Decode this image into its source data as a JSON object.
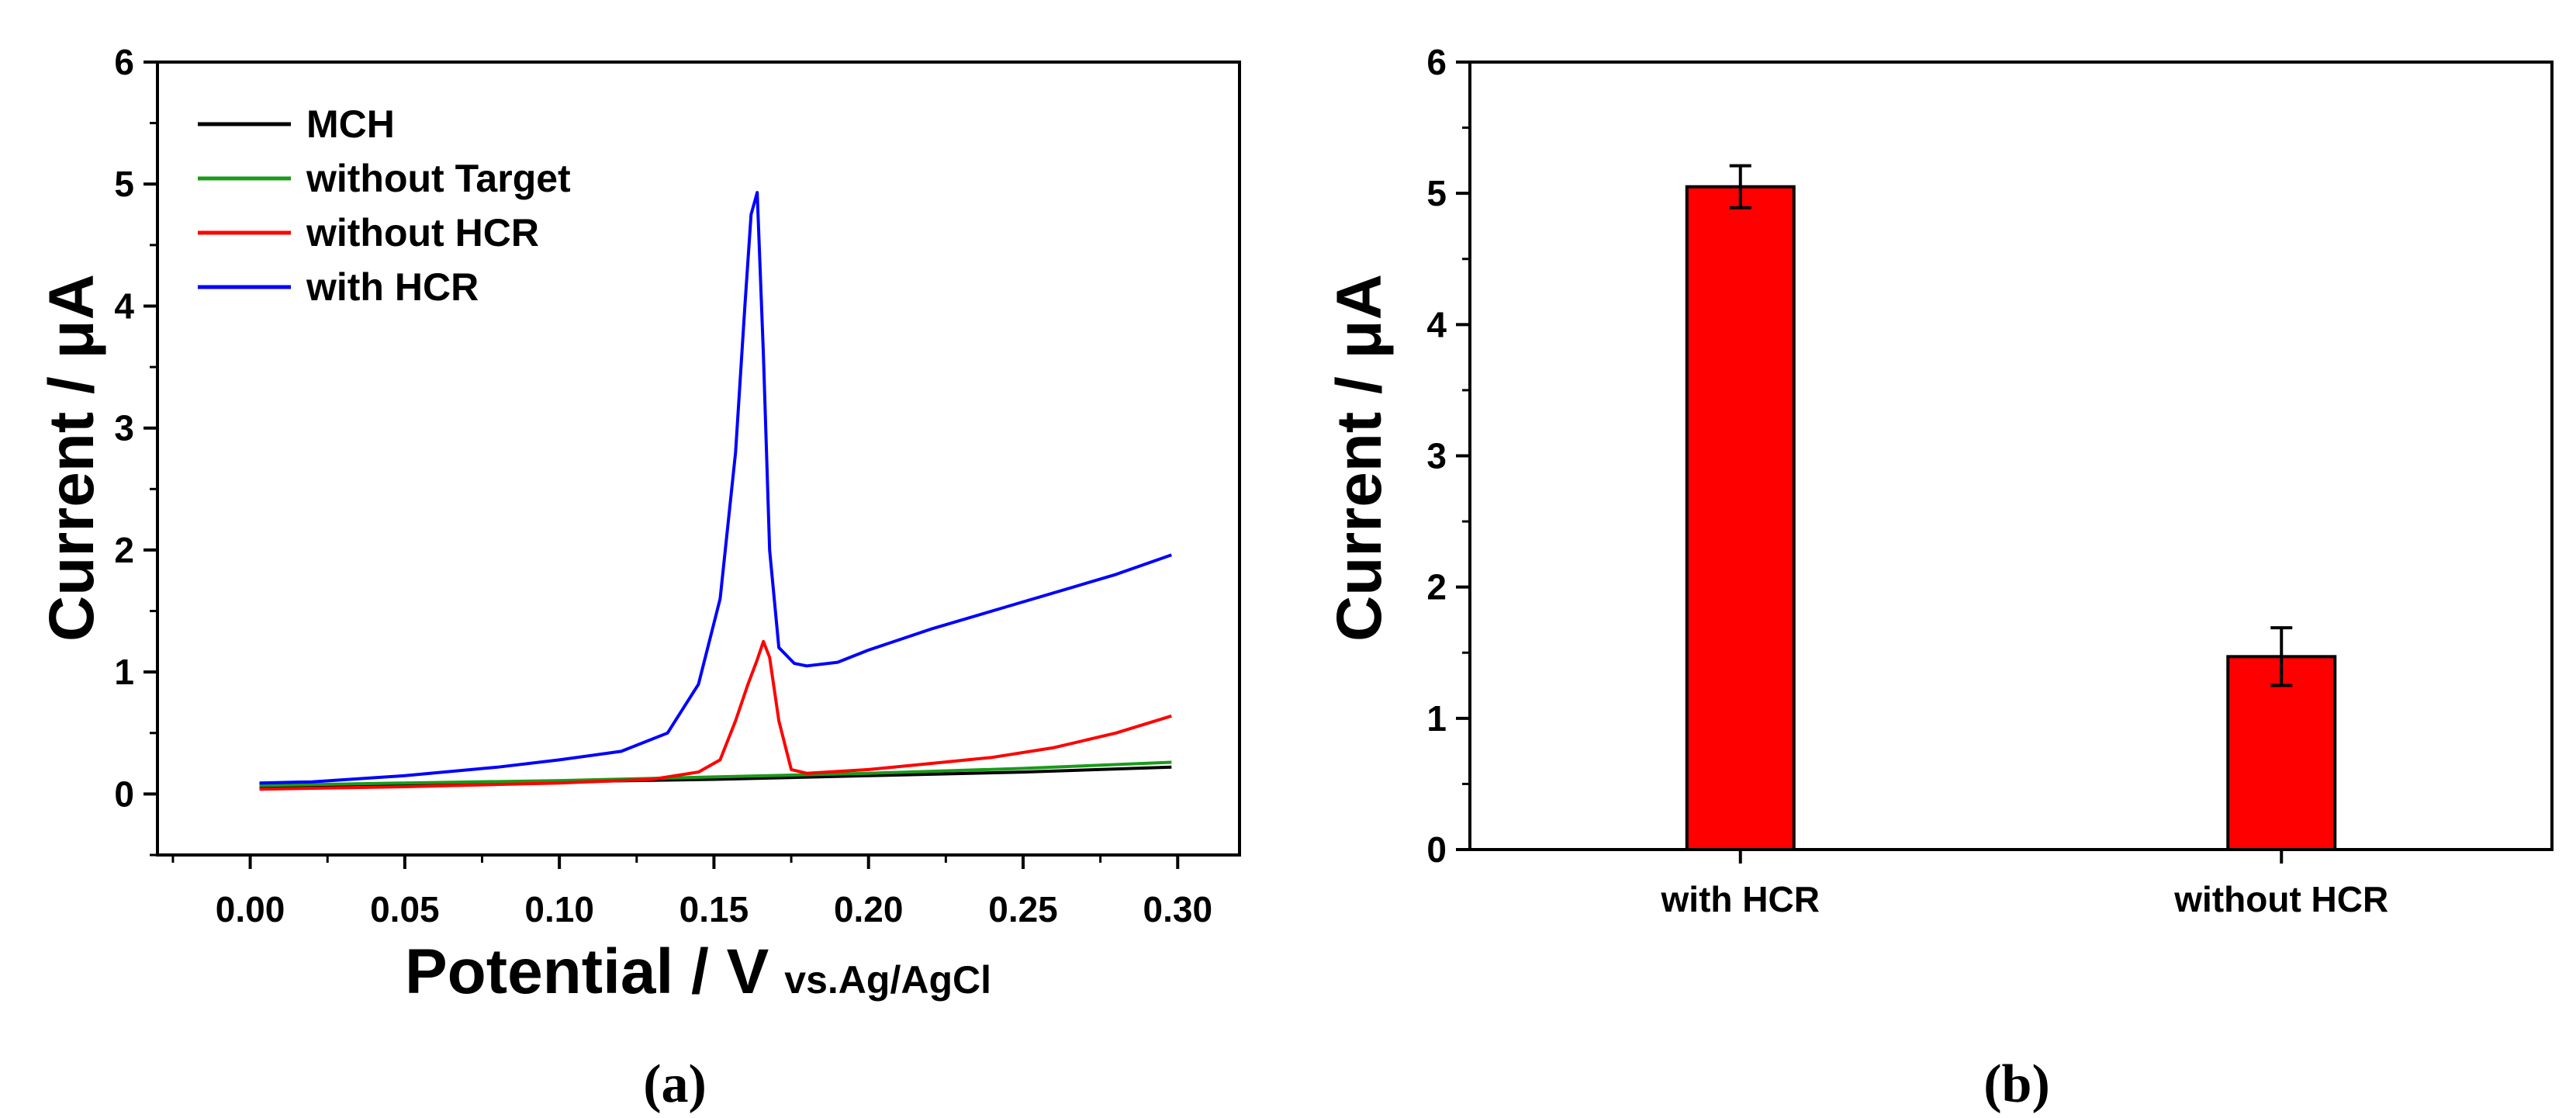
{
  "chart_data": [
    {
      "panel": "(a)",
      "type": "line",
      "xlabel": "Potential / V",
      "xlabel_suffix": "vs.Ag/AgCl",
      "ylabel": "Current / μA",
      "xlim": [
        -0.03,
        0.32
      ],
      "ylim": [
        -0.5,
        6
      ],
      "xticks": [
        "0.00",
        "0.05",
        "0.10",
        "0.15",
        "0.20",
        "0.25",
        "0.30"
      ],
      "yticks": [
        "0",
        "1",
        "2",
        "3",
        "4",
        "5",
        "6"
      ],
      "legend_position": "top-left",
      "series": [
        {
          "name": "MCH",
          "color": "#000000",
          "points": [
            [
              0.003,
              0.06
            ],
            [
              0.05,
              0.08
            ],
            [
              0.1,
              0.1
            ],
            [
              0.15,
              0.12
            ],
            [
              0.2,
              0.15
            ],
            [
              0.25,
              0.18
            ],
            [
              0.298,
              0.22
            ]
          ]
        },
        {
          "name": "without Target",
          "color": "#1a9a1a",
          "points": [
            [
              0.003,
              0.07
            ],
            [
              0.05,
              0.09
            ],
            [
              0.1,
              0.11
            ],
            [
              0.15,
              0.14
            ],
            [
              0.2,
              0.17
            ],
            [
              0.25,
              0.21
            ],
            [
              0.298,
              0.26
            ]
          ]
        },
        {
          "name": "without HCR",
          "color": "#ff0000",
          "points": [
            [
              0.003,
              0.04
            ],
            [
              0.05,
              0.06
            ],
            [
              0.1,
              0.09
            ],
            [
              0.13,
              0.12
            ],
            [
              0.145,
              0.18
            ],
            [
              0.152,
              0.28
            ],
            [
              0.157,
              0.6
            ],
            [
              0.161,
              0.9
            ],
            [
              0.164,
              1.1
            ],
            [
              0.166,
              1.25
            ],
            [
              0.168,
              1.12
            ],
            [
              0.171,
              0.6
            ],
            [
              0.175,
              0.2
            ],
            [
              0.18,
              0.17
            ],
            [
              0.2,
              0.2
            ],
            [
              0.22,
              0.25
            ],
            [
              0.24,
              0.3
            ],
            [
              0.26,
              0.38
            ],
            [
              0.28,
              0.5
            ],
            [
              0.298,
              0.64
            ]
          ]
        },
        {
          "name": "with HCR",
          "color": "#0000ff",
          "points": [
            [
              0.003,
              0.09
            ],
            [
              0.02,
              0.1
            ],
            [
              0.05,
              0.15
            ],
            [
              0.08,
              0.22
            ],
            [
              0.1,
              0.28
            ],
            [
              0.12,
              0.35
            ],
            [
              0.135,
              0.5
            ],
            [
              0.145,
              0.9
            ],
            [
              0.152,
              1.6
            ],
            [
              0.157,
              2.8
            ],
            [
              0.16,
              4.0
            ],
            [
              0.162,
              4.75
            ],
            [
              0.164,
              4.93
            ],
            [
              0.166,
              3.6
            ],
            [
              0.168,
              2.0
            ],
            [
              0.171,
              1.2
            ],
            [
              0.176,
              1.07
            ],
            [
              0.18,
              1.05
            ],
            [
              0.19,
              1.08
            ],
            [
              0.2,
              1.18
            ],
            [
              0.22,
              1.35
            ],
            [
              0.24,
              1.5
            ],
            [
              0.26,
              1.65
            ],
            [
              0.28,
              1.8
            ],
            [
              0.298,
              1.96
            ]
          ]
        }
      ]
    },
    {
      "panel": "(b)",
      "type": "bar",
      "ylabel": "Current / μA",
      "ylim": [
        0,
        6
      ],
      "yticks": [
        "0",
        "1",
        "2",
        "3",
        "4",
        "5",
        "6"
      ],
      "categories": [
        "with HCR",
        "without HCR"
      ],
      "values": [
        5.05,
        1.47
      ],
      "errors": [
        0.16,
        0.22
      ],
      "bar_color": "#ff0000"
    }
  ]
}
